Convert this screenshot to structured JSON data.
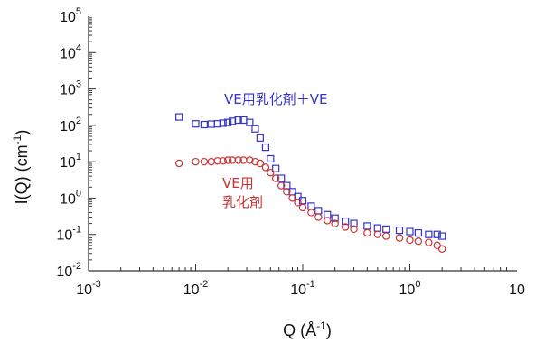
{
  "chart_data": {
    "type": "scatter",
    "title": "",
    "xlabel": "Q (Å",
    "xlabel_exp": "-1",
    "xlabel_close": ")",
    "ylabel": "I(Q) (cm",
    "ylabel_exp": "-1",
    "ylabel_close": ")",
    "xscale": "log",
    "yscale": "log",
    "xlim": [
      0.001,
      10
    ],
    "ylim": [
      0.01,
      100000
    ],
    "grid": false,
    "x_ticks": [
      {
        "base": "10",
        "exp": "-3",
        "value": 0.001
      },
      {
        "base": "10",
        "exp": "-2",
        "value": 0.01
      },
      {
        "base": "10",
        "exp": "-1",
        "value": 0.1
      },
      {
        "base": "10",
        "exp": "0",
        "value": 1
      },
      {
        "base": "10",
        "exp": "",
        "value": 10
      }
    ],
    "y_ticks": [
      {
        "base": "10",
        "exp": "-2",
        "value": 0.01
      },
      {
        "base": "10",
        "exp": "-1",
        "value": 0.1
      },
      {
        "base": "10",
        "exp": "0",
        "value": 1
      },
      {
        "base": "10",
        "exp": "1",
        "value": 10
      },
      {
        "base": "10",
        "exp": "2",
        "value": 100
      },
      {
        "base": "10",
        "exp": "3",
        "value": 1000
      },
      {
        "base": "10",
        "exp": "4",
        "value": 10000
      },
      {
        "base": "10",
        "exp": "5",
        "value": 100000
      }
    ],
    "series": [
      {
        "name": "VE用乳化剤＋VE",
        "color": "#3333cc",
        "marker": "square",
        "x": [
          0.007,
          0.01,
          0.012,
          0.014,
          0.016,
          0.018,
          0.02,
          0.022,
          0.025,
          0.028,
          0.032,
          0.036,
          0.04,
          0.045,
          0.05,
          0.056,
          0.063,
          0.071,
          0.08,
          0.09,
          0.1,
          0.12,
          0.14,
          0.17,
          0.2,
          0.25,
          0.3,
          0.4,
          0.5,
          0.6,
          0.8,
          1.0,
          1.2,
          1.5,
          1.8,
          2.0
        ],
        "values": [
          170,
          110,
          105,
          108,
          110,
          115,
          120,
          130,
          140,
          140,
          120,
          80,
          45,
          25,
          12,
          6.5,
          3.5,
          2.2,
          1.5,
          1.1,
          0.85,
          0.6,
          0.45,
          0.35,
          0.28,
          0.23,
          0.2,
          0.17,
          0.15,
          0.14,
          0.13,
          0.12,
          0.11,
          0.1,
          0.1,
          0.09
        ]
      },
      {
        "name": "VE用乳化剤",
        "color": "#cc3333",
        "marker": "circle",
        "x": [
          0.007,
          0.01,
          0.012,
          0.014,
          0.016,
          0.018,
          0.02,
          0.022,
          0.025,
          0.028,
          0.032,
          0.036,
          0.04,
          0.045,
          0.05,
          0.056,
          0.063,
          0.071,
          0.08,
          0.09,
          0.1,
          0.12,
          0.14,
          0.17,
          0.2,
          0.25,
          0.3,
          0.4,
          0.5,
          0.6,
          0.8,
          1.0,
          1.2,
          1.5,
          1.8,
          2.0
        ],
        "values": [
          9,
          10,
          10,
          10,
          10.5,
          10.5,
          11,
          11,
          11,
          11,
          11,
          10,
          9,
          7,
          5,
          3.5,
          2.2,
          1.5,
          1.0,
          0.75,
          0.55,
          0.4,
          0.3,
          0.24,
          0.2,
          0.16,
          0.14,
          0.11,
          0.1,
          0.09,
          0.08,
          0.07,
          0.065,
          0.06,
          0.05,
          0.04
        ]
      }
    ],
    "annotations": [
      {
        "text": "VE用乳化剤＋VE",
        "color": "#3333cc",
        "series": 0
      },
      {
        "text": "VE用",
        "color": "#cc3333",
        "series": 1
      },
      {
        "text": "乳化剤",
        "color": "#cc3333",
        "series": 1
      }
    ]
  }
}
